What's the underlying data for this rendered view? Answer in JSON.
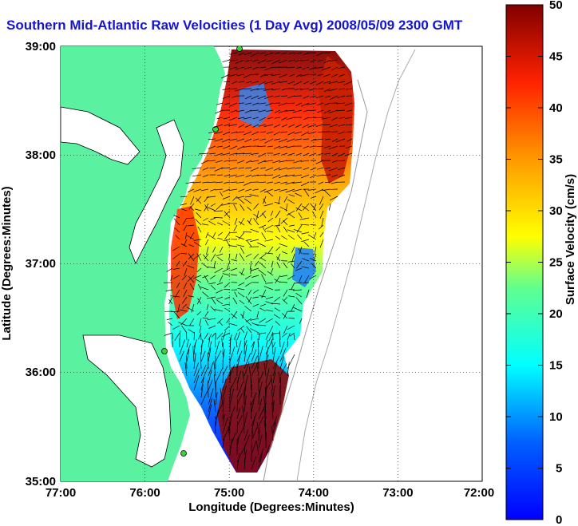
{
  "title": "Southern Mid-Atlantic Raw Velocities (1 Day Avg) 2008/05/09 2300 GMT",
  "x_axis": {
    "label": "Longitude (Degrees:Minutes)",
    "ticks": [
      "77:00",
      "76:00",
      "75:00",
      "74:00",
      "73:00",
      "72:00"
    ]
  },
  "y_axis": {
    "label": "Latitude (Degrees:Minutes)",
    "ticks": [
      "39:00",
      "38:00",
      "37:00",
      "36:00",
      "35:00"
    ]
  },
  "colorbar": {
    "label": "Surface Velocity (cm/s)",
    "ticks": [
      "50",
      "45",
      "40",
      "35",
      "30",
      "25",
      "20",
      "15",
      "10",
      "5",
      "0"
    ],
    "range": [
      0,
      50
    ]
  },
  "map_extent": {
    "lon": [
      -77,
      -72
    ],
    "lat": [
      35,
      39
    ]
  },
  "colors": {
    "land": "#5af2a0",
    "title": "#1414d2",
    "coastline": "#000000",
    "isobath": "#999999"
  },
  "legend_note": "jet colormap, low=blue, high=dark red"
}
